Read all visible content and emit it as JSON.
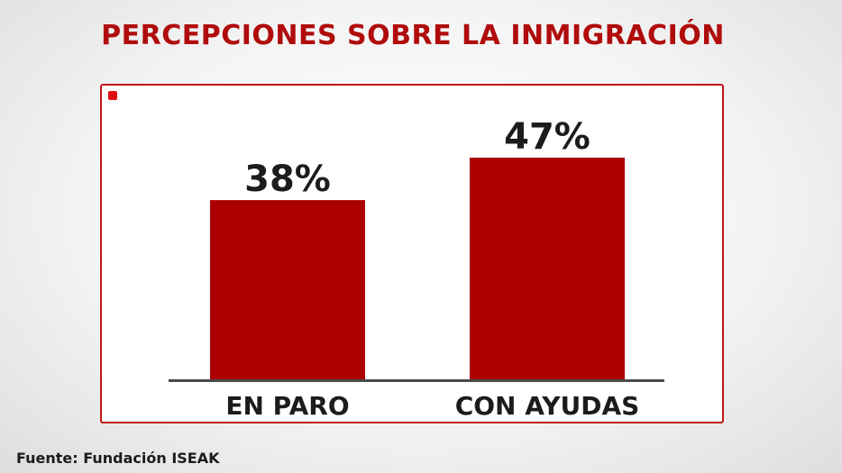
{
  "title": "PERCEPCIONES SOBRE LA INMIGRACIÓN",
  "source": "Fuente: Fundación ISEAK",
  "colors": {
    "title": "#b00c0c",
    "bar": "#ac0000",
    "frame": "#c01818",
    "marker": "#e01010",
    "axis": "#4a4a4a",
    "label": "#1c1c1c"
  },
  "chart_data": {
    "type": "bar",
    "categories": [
      "EN PARO",
      "CON AYUDAS"
    ],
    "values": [
      38,
      47
    ],
    "value_labels": [
      "38%",
      "47%"
    ],
    "title": "PERCEPCIONES SOBRE LA INMIGRACIÓN",
    "xlabel": "",
    "ylabel": "",
    "ylim": [
      0,
      47
    ],
    "grid": false,
    "legend": "none"
  }
}
